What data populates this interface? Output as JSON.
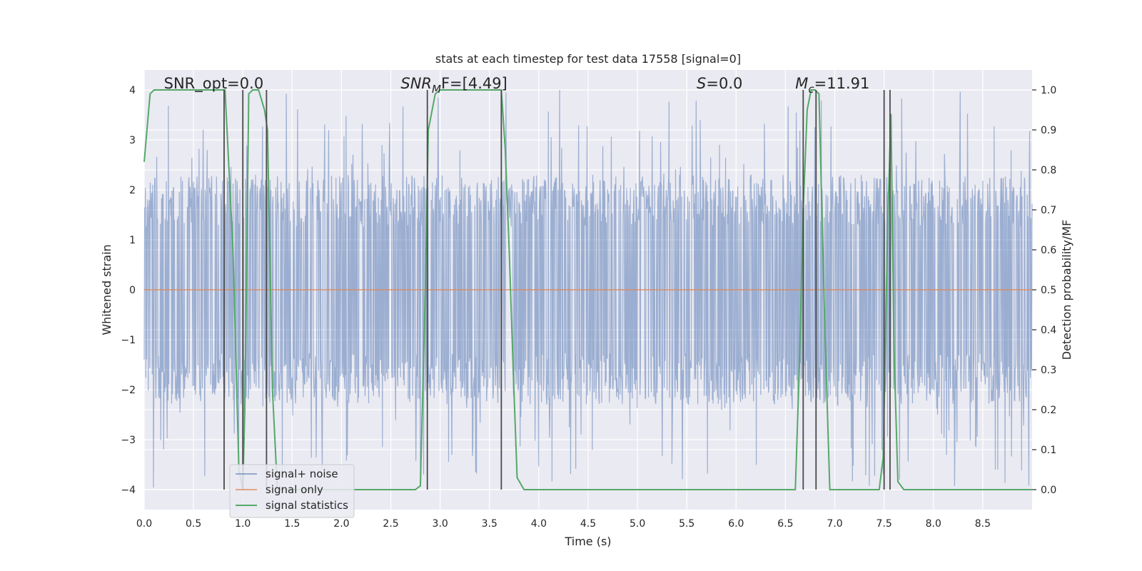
{
  "chart_data": {
    "type": "line",
    "title": "stats at each timestep for test data 17558 [signal=0]",
    "xlabel": "Time (s)",
    "ylabel_left": "Whitened strain",
    "ylabel_right": "Detection probability/MF",
    "xlim": [
      0.0,
      9.0
    ],
    "ylim_left": [
      -4.4,
      4.4
    ],
    "ylim_right": [
      -0.05,
      1.05
    ],
    "x_ticks": [
      "0.0",
      "0.5",
      "1.0",
      "1.5",
      "2.0",
      "2.5",
      "3.0",
      "3.5",
      "4.0",
      "4.5",
      "5.0",
      "5.5",
      "6.0",
      "6.5",
      "7.0",
      "7.5",
      "8.0",
      "8.5"
    ],
    "x_tick_values": [
      0.0,
      0.5,
      1.0,
      1.5,
      2.0,
      2.5,
      3.0,
      3.5,
      4.0,
      4.5,
      5.0,
      5.5,
      6.0,
      6.5,
      7.0,
      7.5,
      8.0,
      8.5
    ],
    "y_ticks_left": [
      "−4",
      "−3",
      "−2",
      "−1",
      "0",
      "1",
      "2",
      "3",
      "4"
    ],
    "y_tick_values_left": [
      -4,
      -3,
      -2,
      -1,
      0,
      1,
      2,
      3,
      4
    ],
    "y_ticks_right": [
      "0.0",
      "0.1",
      "0.2",
      "0.3",
      "0.4",
      "0.5",
      "0.6",
      "0.7",
      "0.8",
      "0.9",
      "1.0"
    ],
    "y_tick_values_right": [
      0.0,
      0.1,
      0.2,
      0.3,
      0.4,
      0.5,
      0.6,
      0.7,
      0.8,
      0.9,
      1.0
    ],
    "grid": true,
    "legend_position": "lower-left",
    "series": [
      {
        "name": "signal+ noise",
        "axis": "left",
        "color": "#4c72b0",
        "noise_envelope": {
          "typical_abs": 2.3,
          "max_abs": 4.0,
          "duration": 9.0
        }
      },
      {
        "name": "signal only",
        "axis": "left",
        "color": "#dd8452",
        "x": [
          0.0,
          9.0
        ],
        "y": [
          0.0,
          0.0
        ]
      },
      {
        "name": "signal statistics",
        "axis": "right",
        "color": "#55a868",
        "x": [
          0.0,
          0.06,
          0.1,
          0.2,
          0.8,
          0.82,
          0.9,
          0.96,
          1.0,
          1.02,
          1.06,
          1.1,
          1.16,
          1.22,
          1.25,
          1.3,
          1.35,
          1.45,
          2.75,
          2.8,
          2.85,
          2.88,
          2.95,
          3.0,
          3.55,
          3.62,
          3.66,
          3.7,
          3.74,
          3.78,
          3.85,
          6.6,
          6.64,
          6.68,
          6.72,
          6.76,
          6.8,
          6.84,
          6.9,
          6.95,
          7.0,
          7.45,
          7.49,
          7.52,
          7.54,
          7.57,
          7.6,
          7.64,
          7.7,
          9.0
        ],
        "y": [
          0.82,
          0.99,
          1.0,
          1.0,
          1.0,
          1.0,
          0.6,
          0.05,
          0.0,
          0.2,
          0.99,
          1.0,
          1.0,
          0.95,
          0.9,
          0.25,
          0.0,
          0.0,
          0.0,
          0.01,
          0.5,
          0.9,
          0.99,
          1.0,
          1.0,
          1.0,
          0.85,
          0.6,
          0.3,
          0.03,
          0.0,
          0.0,
          0.3,
          0.7,
          0.95,
          1.0,
          1.0,
          0.99,
          0.4,
          0.0,
          0.0,
          0.0,
          0.08,
          0.45,
          0.7,
          0.94,
          0.35,
          0.02,
          0.0,
          0.0
        ]
      }
    ],
    "vertical_lines": [
      0.81,
      1.0,
      1.24,
      2.87,
      3.62,
      6.68,
      6.81,
      7.5,
      7.56
    ],
    "vertical_line_color": "#4a4a4a",
    "annotations": [
      {
        "text": "SNR_opt=0.0",
        "x": 0.2,
        "style": "normal"
      },
      {
        "text": "SNR",
        "sub": "M",
        "rest": "F=[4.49]",
        "x": 2.6,
        "style": "math"
      },
      {
        "text": "S",
        "rest": "=0.0",
        "x": 5.6,
        "style": "math"
      },
      {
        "text": "M",
        "sub": "c",
        "rest": "=11.91",
        "x": 6.6,
        "style": "math"
      }
    ]
  }
}
